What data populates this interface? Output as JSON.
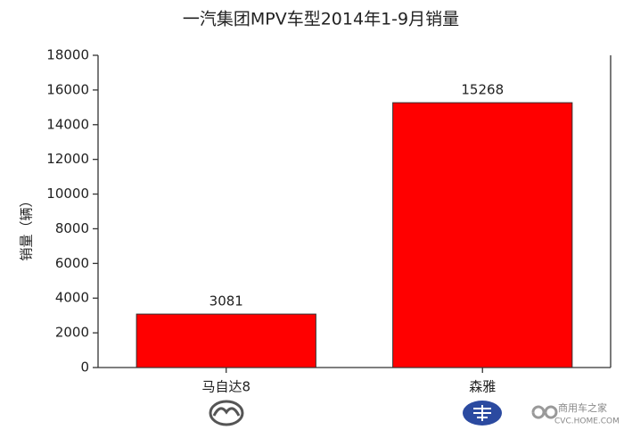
{
  "chart_data": {
    "type": "bar",
    "title": "一汽集团MPV车型2014年1-9月销量",
    "y_label": "销量（辆）",
    "categories": [
      "马自达8",
      "森雅"
    ],
    "values": [
      3081,
      15268
    ],
    "color": "#ff0000",
    "ylim": [
      0,
      18000
    ],
    "yticks": [
      0,
      2000,
      4000,
      6000,
      8000,
      10000,
      12000,
      14000,
      16000,
      18000
    ],
    "watermark": [
      "商用车之家",
      "CVC.HOME.COM"
    ]
  }
}
